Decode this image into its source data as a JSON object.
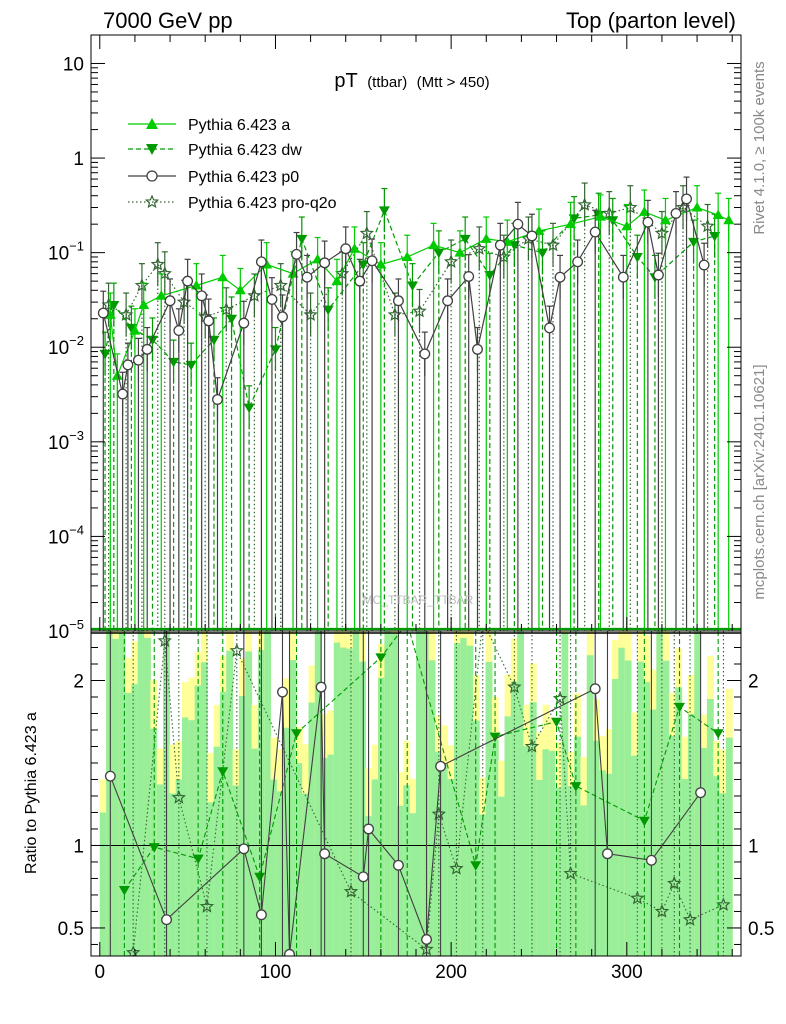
{
  "header": {
    "left_title": "7000 GeV pp",
    "right_title": "Top (parton level)"
  },
  "side_labels": {
    "rivet": "Rivet 4.1.0, ≥ 100k events",
    "mcplots": "mcplots.cern.ch [arXiv:2401.10621]"
  },
  "watermark": "MC_TTBAR_TTBAR",
  "colors": {
    "a": "#00cc00",
    "dw": "#009900",
    "p0": "#404040",
    "pro_q2o": "#336633",
    "band_yellow": "#ffff99",
    "band_green": "#99ee99"
  },
  "chart_data": {
    "type": "line",
    "title": "pT (ttbar) (Mtt > 450)",
    "title_main": "pT",
    "title_sub": "(ttbar)",
    "title_cut": "(Mtt > 450)",
    "xlim": [
      -5,
      365
    ],
    "upper": {
      "yscale": "log",
      "ylim": [
        1e-05,
        20
      ],
      "ytick_values": [
        1e-05,
        0.0001,
        0.001,
        0.01,
        0.1,
        1,
        10
      ],
      "ytick_labels": [
        {
          "base": "10",
          "exp": "−5"
        },
        {
          "base": "10",
          "exp": "−4"
        },
        {
          "base": "10",
          "exp": "−3"
        },
        {
          "base": "10",
          "exp": "−2"
        },
        {
          "base": "10",
          "exp": "−1"
        },
        {
          "base": "1",
          "exp": ""
        },
        {
          "base": "10",
          "exp": ""
        }
      ]
    },
    "lower": {
      "ylabel": "Ratio to Pythia 6.423 a",
      "ylim": [
        0.33,
        2.3
      ],
      "ytick_values": [
        0.5,
        1,
        2
      ],
      "ytick_labels": [
        "0.5",
        "1",
        "2"
      ],
      "reference": 1
    },
    "xticks": [
      0,
      100,
      200,
      300
    ],
    "xtick_labels": [
      "0",
      "100",
      "200",
      "300"
    ],
    "legend": [
      {
        "name": "Pythia 6.423 a",
        "key": "a",
        "style": "solid",
        "marker": "triangle-up"
      },
      {
        "name": "Pythia 6.423 dw",
        "key": "dw",
        "style": "dashed",
        "marker": "triangle-down"
      },
      {
        "name": "Pythia 6.423 p0",
        "key": "p0",
        "style": "solid",
        "marker": "circle-open"
      },
      {
        "name": "Pythia 6.423 pro-q2o",
        "key": "pro_q2o",
        "style": "dotted",
        "marker": "star"
      }
    ],
    "series": [
      {
        "name": "Pythia 6.423 p0",
        "key": "p0",
        "points": [
          [
            2,
            0.023
          ],
          [
            13,
            0.0032
          ],
          [
            16,
            0.0065
          ],
          [
            22,
            0.0073
          ],
          [
            27,
            0.0095
          ],
          [
            40,
            0.031
          ],
          [
            45,
            0.015
          ],
          [
            50,
            0.05
          ],
          [
            58,
            0.035
          ],
          [
            62,
            0.019
          ],
          [
            67,
            0.0028
          ],
          [
            82,
            0.018
          ],
          [
            92,
            0.08
          ],
          [
            98,
            0.032
          ],
          [
            104,
            0.021
          ],
          [
            112,
            0.096
          ],
          [
            118,
            0.055
          ],
          [
            128,
            0.078
          ],
          [
            140,
            0.11
          ],
          [
            148,
            0.05
          ],
          [
            155,
            0.082
          ],
          [
            170,
            0.031
          ],
          [
            185,
            0.0085
          ],
          [
            198,
            0.031
          ],
          [
            210,
            0.056
          ],
          [
            215,
            0.0095
          ],
          [
            228,
            0.12
          ],
          [
            238,
            0.2
          ],
          [
            246,
            0.15
          ],
          [
            256,
            0.016
          ],
          [
            262,
            0.055
          ],
          [
            272,
            0.08
          ],
          [
            282,
            0.165
          ],
          [
            298,
            0.055
          ],
          [
            312,
            0.21
          ],
          [
            318,
            0.058
          ],
          [
            328,
            0.26
          ],
          [
            334,
            0.37
          ],
          [
            344,
            0.074
          ]
        ]
      },
      {
        "name": "Pythia 6.423 a",
        "key": "a",
        "points": [
          [
            6,
            0.022
          ],
          [
            10,
            0.005
          ],
          [
            20,
            0.015
          ],
          [
            25,
            0.028
          ],
          [
            35,
            0.035
          ],
          [
            55,
            0.045
          ],
          [
            70,
            0.055
          ],
          [
            80,
            0.04
          ],
          [
            95,
            0.075
          ],
          [
            110,
            0.06
          ],
          [
            124,
            0.085
          ],
          [
            135,
            0.05
          ],
          [
            145,
            0.11
          ],
          [
            160,
            0.075
          ],
          [
            175,
            0.09
          ],
          [
            190,
            0.12
          ],
          [
            205,
            0.1
          ],
          [
            220,
            0.14
          ],
          [
            232,
            0.13
          ],
          [
            250,
            0.17
          ],
          [
            268,
            0.2
          ],
          [
            285,
            0.24
          ],
          [
            300,
            0.19
          ],
          [
            310,
            0.27
          ],
          [
            322,
            0.22
          ],
          [
            340,
            0.3
          ],
          [
            352,
            0.25
          ],
          [
            358,
            0.22
          ]
        ]
      },
      {
        "name": "Pythia 6.423 dw",
        "key": "dw",
        "points": [
          [
            3,
            0.0085
          ],
          [
            8,
            0.028
          ],
          [
            18,
            0.016
          ],
          [
            30,
            0.012
          ],
          [
            42,
            0.007
          ],
          [
            52,
            0.0065
          ],
          [
            65,
            0.012
          ],
          [
            75,
            0.02
          ],
          [
            85,
            0.0023
          ],
          [
            100,
            0.0095
          ],
          [
            115,
            0.14
          ],
          [
            130,
            0.025
          ],
          [
            150,
            0.075
          ],
          [
            162,
            0.28
          ],
          [
            178,
            0.045
          ],
          [
            193,
            0.1
          ],
          [
            208,
            0.14
          ],
          [
            222,
            0.058
          ],
          [
            236,
            0.12
          ],
          [
            252,
            0.1
          ],
          [
            270,
            0.23
          ],
          [
            284,
            0.25
          ],
          [
            292,
            0.22
          ],
          [
            306,
            0.09
          ],
          [
            316,
            0.055
          ],
          [
            338,
            0.13
          ],
          [
            350,
            0.15
          ]
        ]
      },
      {
        "name": "Pythia 6.423 pro-q2o",
        "key": "pro_q2o",
        "points": [
          [
            5,
            0.028
          ],
          [
            15,
            0.022
          ],
          [
            24,
            0.045
          ],
          [
            33,
            0.075
          ],
          [
            37,
            0.06
          ],
          [
            48,
            0.03
          ],
          [
            60,
            0.021
          ],
          [
            72,
            0.025
          ],
          [
            88,
            0.035
          ],
          [
            103,
            0.045
          ],
          [
            120,
            0.022
          ],
          [
            138,
            0.06
          ],
          [
            152,
            0.16
          ],
          [
            168,
            0.022
          ],
          [
            182,
            0.024
          ],
          [
            200,
            0.08
          ],
          [
            216,
            0.11
          ],
          [
            230,
            0.09
          ],
          [
            244,
            0.14
          ],
          [
            258,
            0.12
          ],
          [
            276,
            0.32
          ],
          [
            290,
            0.26
          ],
          [
            302,
            0.3
          ],
          [
            320,
            0.16
          ],
          [
            332,
            0.3
          ],
          [
            346,
            0.19
          ]
        ]
      }
    ],
    "ratio_series": [
      {
        "name": "Pythia 6.423 p0",
        "key": "p0",
        "points": [
          [
            6,
            1.42
          ],
          [
            38,
            0.55
          ],
          [
            82,
            0.98
          ],
          [
            92,
            0.58
          ],
          [
            104,
            1.93
          ],
          [
            108,
            0.34
          ],
          [
            126,
            1.96
          ],
          [
            128,
            0.95
          ],
          [
            150,
            0.81
          ],
          [
            153,
            1.1
          ],
          [
            170,
            0.88
          ],
          [
            186,
            0.43
          ],
          [
            194,
            1.48
          ],
          [
            282,
            1.95
          ],
          [
            289,
            0.95
          ],
          [
            314,
            0.91
          ],
          [
            342,
            1.32
          ]
        ]
      },
      {
        "name": "Pythia 6.423 dw",
        "key": "dw",
        "points": [
          [
            14,
            0.73
          ],
          [
            31,
            0.99
          ],
          [
            56,
            0.92
          ],
          [
            70,
            1.45
          ],
          [
            91,
            0.81
          ],
          [
            112,
            1.68
          ],
          [
            160,
            2.14
          ],
          [
            175,
            2.35
          ],
          [
            214,
            0.88
          ],
          [
            225,
            1.66
          ],
          [
            260,
            1.75
          ],
          [
            271,
            1.36
          ],
          [
            310,
            1.15
          ],
          [
            330,
            1.84
          ],
          [
            352,
            1.68
          ]
        ]
      },
      {
        "name": "Pythia 6.423 pro-q2o",
        "key": "pro_q2o",
        "points": [
          [
            19,
            0.35
          ],
          [
            37,
            2.24
          ],
          [
            45,
            1.29
          ],
          [
            61,
            0.63
          ],
          [
            78,
            2.18
          ],
          [
            143,
            0.72
          ],
          [
            186,
            0.37
          ],
          [
            193,
            1.19
          ],
          [
            203,
            0.86
          ],
          [
            218,
            2.36
          ],
          [
            236,
            1.96
          ],
          [
            246,
            1.6
          ],
          [
            262,
            1.89
          ],
          [
            268,
            0.83
          ],
          [
            306,
            0.68
          ],
          [
            320,
            0.6
          ],
          [
            327,
            0.77
          ],
          [
            336,
            0.55
          ],
          [
            355,
            0.64
          ]
        ]
      }
    ]
  }
}
